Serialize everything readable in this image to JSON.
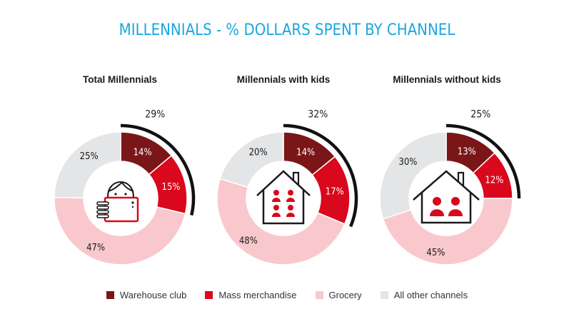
{
  "title": "MILLENNIALS - % DOLLARS SPENT BY CHANNEL",
  "colors": {
    "warehouse": "#7a1618",
    "mass": "#d9081c",
    "grocery": "#f9c8cd",
    "other": "#e4e5e7",
    "arc": "#111111"
  },
  "legend": [
    {
      "label": "Warehouse club",
      "color": "#7a1618"
    },
    {
      "label": "Mass merchandise",
      "color": "#d9081c"
    },
    {
      "label": "Grocery",
      "color": "#f9c8cd"
    },
    {
      "label": "All other channels",
      "color": "#e4e5e7"
    }
  ],
  "chart_data": [
    {
      "type": "pie",
      "title": "Total Millennials",
      "icon": "person-with-phone-icon",
      "slices": [
        {
          "name": "Warehouse club",
          "value": 14,
          "label": "14%"
        },
        {
          "name": "Mass merchandise",
          "value": 15,
          "label": "15%"
        },
        {
          "name": "Grocery",
          "value": 47,
          "label": "47%"
        },
        {
          "name": "All other channels",
          "value": 25,
          "label": "25%"
        }
      ],
      "combined_label": "29%"
    },
    {
      "type": "pie",
      "title": "Millennials with kids",
      "icon": "house-with-family-icon",
      "slices": [
        {
          "name": "Warehouse club",
          "value": 14,
          "label": "14%"
        },
        {
          "name": "Mass merchandise",
          "value": 17,
          "label": "17%"
        },
        {
          "name": "Grocery",
          "value": 48,
          "label": "48%"
        },
        {
          "name": "All other channels",
          "value": 20,
          "label": "20%"
        }
      ],
      "combined_label": "32%"
    },
    {
      "type": "pie",
      "title": "Millennials without kids",
      "icon": "house-with-couple-icon",
      "slices": [
        {
          "name": "Warehouse club",
          "value": 13,
          "label": "13%"
        },
        {
          "name": "Mass merchandise",
          "value": 12,
          "label": "12%"
        },
        {
          "name": "Grocery",
          "value": 45,
          "label": "45%"
        },
        {
          "name": "All other channels",
          "value": 30,
          "label": "30%"
        }
      ],
      "combined_label": "25%"
    }
  ]
}
